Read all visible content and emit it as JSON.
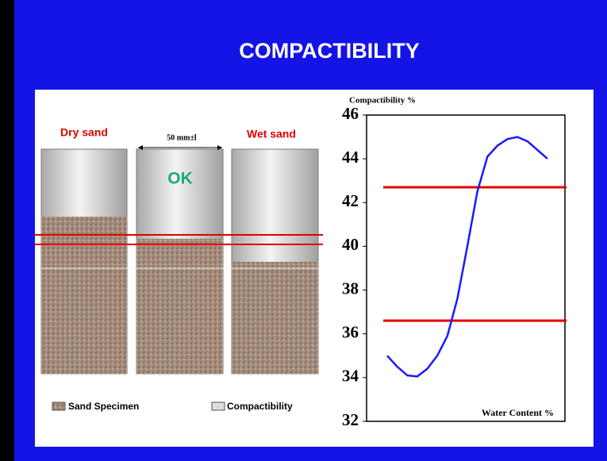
{
  "slide": {
    "title": "COMPACTIBILITY",
    "dry_label": "Dry sand",
    "wet_label": "Wet sand",
    "ok_label": "OK",
    "dimension_label": "50 mm±l",
    "legend_sand": "Sand Specimen",
    "legend_compactibility": "Compactibility"
  },
  "chart_data": {
    "type": "line",
    "title": "Compactibility %",
    "x_label": "Water Content %",
    "ylim": [
      32,
      46
    ],
    "yticks": [
      32,
      34,
      36,
      38,
      40,
      42,
      44,
      46
    ],
    "series": [
      {
        "color": "#1a1aff",
        "values": [
          35.0,
          34.5,
          34.1,
          34.05,
          34.4,
          35.0,
          35.9,
          37.6,
          40.0,
          42.5,
          44.1,
          44.6,
          44.9,
          45.0,
          44.8,
          44.4,
          44.0
        ]
      }
    ],
    "reference_lines": [
      {
        "value": 42.7,
        "color": "#e00000"
      },
      {
        "value": 36.6,
        "color": "#e00000"
      }
    ]
  }
}
